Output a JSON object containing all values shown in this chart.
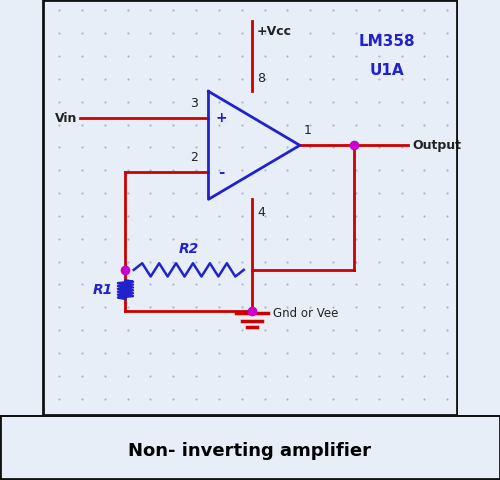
{
  "bg_color": "#e8eef8",
  "wire_color": "#cc0000",
  "opamp_color": "#2222cc",
  "dot_color": "#cc00cc",
  "label_color_dark": "#222222",
  "label_color_blue": "#2222cc",
  "title": "Non- inverting amplifier",
  "title_fontsize": 13,
  "lm358_line1": "LM358",
  "lm358_line2": "U1A",
  "vcc_label": "+Vcc",
  "gnd_label": "Gnd or Vee",
  "vin_label": "Vin",
  "output_label": "Output",
  "pin8": "8",
  "pin4": "4",
  "pin3": "3",
  "pin2": "2",
  "pin1": "1",
  "r1_label": "R1",
  "r2_label": "R2",
  "plus_label": "+",
  "minus_label": "-",
  "grid_color": "#aaaacc",
  "title_bg": "#ffffff",
  "border_color": "#111111"
}
